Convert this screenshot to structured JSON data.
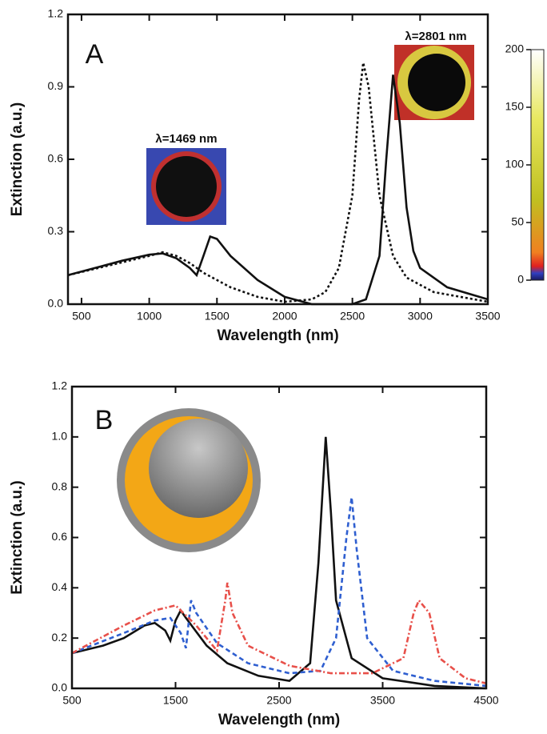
{
  "chart_data": [
    {
      "type": "line",
      "panel_label": "A",
      "x_label": "Wavelength (nm)",
      "y_label": "Extinction (a.u.)",
      "xlim": [
        400,
        3500
      ],
      "ylim": [
        0,
        1.2
      ],
      "xticks": [
        500,
        1000,
        1500,
        2000,
        2500,
        3000,
        3500
      ],
      "yticks": [
        {
          "value": 0,
          "label": "0.0"
        },
        0.3,
        0.6,
        0.9,
        1.2
      ],
      "annotations": [
        "λ=1469 nm",
        "λ=2801 nm"
      ],
      "colorbar": {
        "lim": [
          0,
          200
        ],
        "ticks": [
          0,
          50,
          100,
          150,
          200
        ]
      },
      "series": [
        {
          "color": "#111111",
          "dash": "solid",
          "x": [
            400,
            600,
            800,
            1000,
            1100,
            1200,
            1300,
            1350,
            1400,
            1450,
            1500,
            1600,
            1800,
            2000,
            2200,
            2500,
            2600,
            2700,
            2750,
            2800,
            2850,
            2900,
            2950,
            3000,
            3200,
            3500
          ],
          "values": [
            0.12,
            0.15,
            0.18,
            0.205,
            0.21,
            0.19,
            0.15,
            0.12,
            0.2,
            0.28,
            0.27,
            0.2,
            0.1,
            0.03,
            0.0,
            0.0,
            0.02,
            0.2,
            0.6,
            0.95,
            0.75,
            0.4,
            0.22,
            0.15,
            0.07,
            0.02
          ]
        },
        {
          "color": "#111111",
          "dash": "dotted",
          "x": [
            400,
            1000,
            1100,
            1200,
            1300,
            1400,
            1600,
            1800,
            2000,
            2200,
            2300,
            2400,
            2500,
            2550,
            2580,
            2620,
            2700,
            2800,
            2900,
            3100,
            3500
          ],
          "values": [
            0.12,
            0.2,
            0.215,
            0.2,
            0.17,
            0.13,
            0.07,
            0.03,
            0.01,
            0.02,
            0.05,
            0.15,
            0.45,
            0.85,
            1.0,
            0.9,
            0.45,
            0.2,
            0.11,
            0.05,
            0.01
          ]
        }
      ]
    },
    {
      "type": "line",
      "panel_label": "B",
      "x_label": "Wavelength (nm)",
      "y_label": "Extinction (a.u.)",
      "xlim": [
        500,
        4500
      ],
      "ylim": [
        0,
        1.2
      ],
      "xticks": [
        500,
        1500,
        2500,
        3500,
        4500
      ],
      "yticks": [
        {
          "value": 0,
          "label": "0.0"
        },
        0.2,
        0.4,
        0.6,
        0.8,
        {
          "value": 1,
          "label": "1.0"
        },
        1.2
      ],
      "series": [
        {
          "color": "#111111",
          "dash": "solid",
          "x": [
            500,
            800,
            1000,
            1200,
            1300,
            1400,
            1450,
            1500,
            1550,
            1600,
            1800,
            2000,
            2300,
            2600,
            2800,
            2880,
            2950,
            3000,
            3050,
            3200,
            3500,
            4000,
            4500
          ],
          "values": [
            0.14,
            0.17,
            0.2,
            0.25,
            0.26,
            0.23,
            0.19,
            0.27,
            0.31,
            0.28,
            0.17,
            0.1,
            0.05,
            0.03,
            0.1,
            0.5,
            1.0,
            0.7,
            0.35,
            0.12,
            0.04,
            0.01,
            0.0
          ]
        },
        {
          "color": "#2f5fd0",
          "dash": "dashed",
          "x": [
            500,
            1000,
            1300,
            1450,
            1550,
            1600,
            1650,
            1700,
            1900,
            2200,
            2600,
            2900,
            3050,
            3150,
            3200,
            3250,
            3350,
            3600,
            4000,
            4500
          ],
          "values": [
            0.14,
            0.22,
            0.27,
            0.28,
            0.22,
            0.16,
            0.35,
            0.3,
            0.18,
            0.1,
            0.06,
            0.07,
            0.2,
            0.6,
            0.76,
            0.55,
            0.2,
            0.07,
            0.03,
            0.01
          ]
        },
        {
          "color": "#e8504a",
          "dash": "dashdot",
          "x": [
            500,
            1000,
            1300,
            1500,
            1700,
            1900,
            1980,
            2000,
            2050,
            2200,
            2600,
            3000,
            3400,
            3700,
            3800,
            3850,
            3950,
            4050,
            4300,
            4500
          ],
          "values": [
            0.14,
            0.25,
            0.31,
            0.33,
            0.25,
            0.15,
            0.35,
            0.42,
            0.3,
            0.17,
            0.09,
            0.06,
            0.06,
            0.12,
            0.3,
            0.35,
            0.3,
            0.12,
            0.04,
            0.02
          ]
        }
      ]
    }
  ]
}
